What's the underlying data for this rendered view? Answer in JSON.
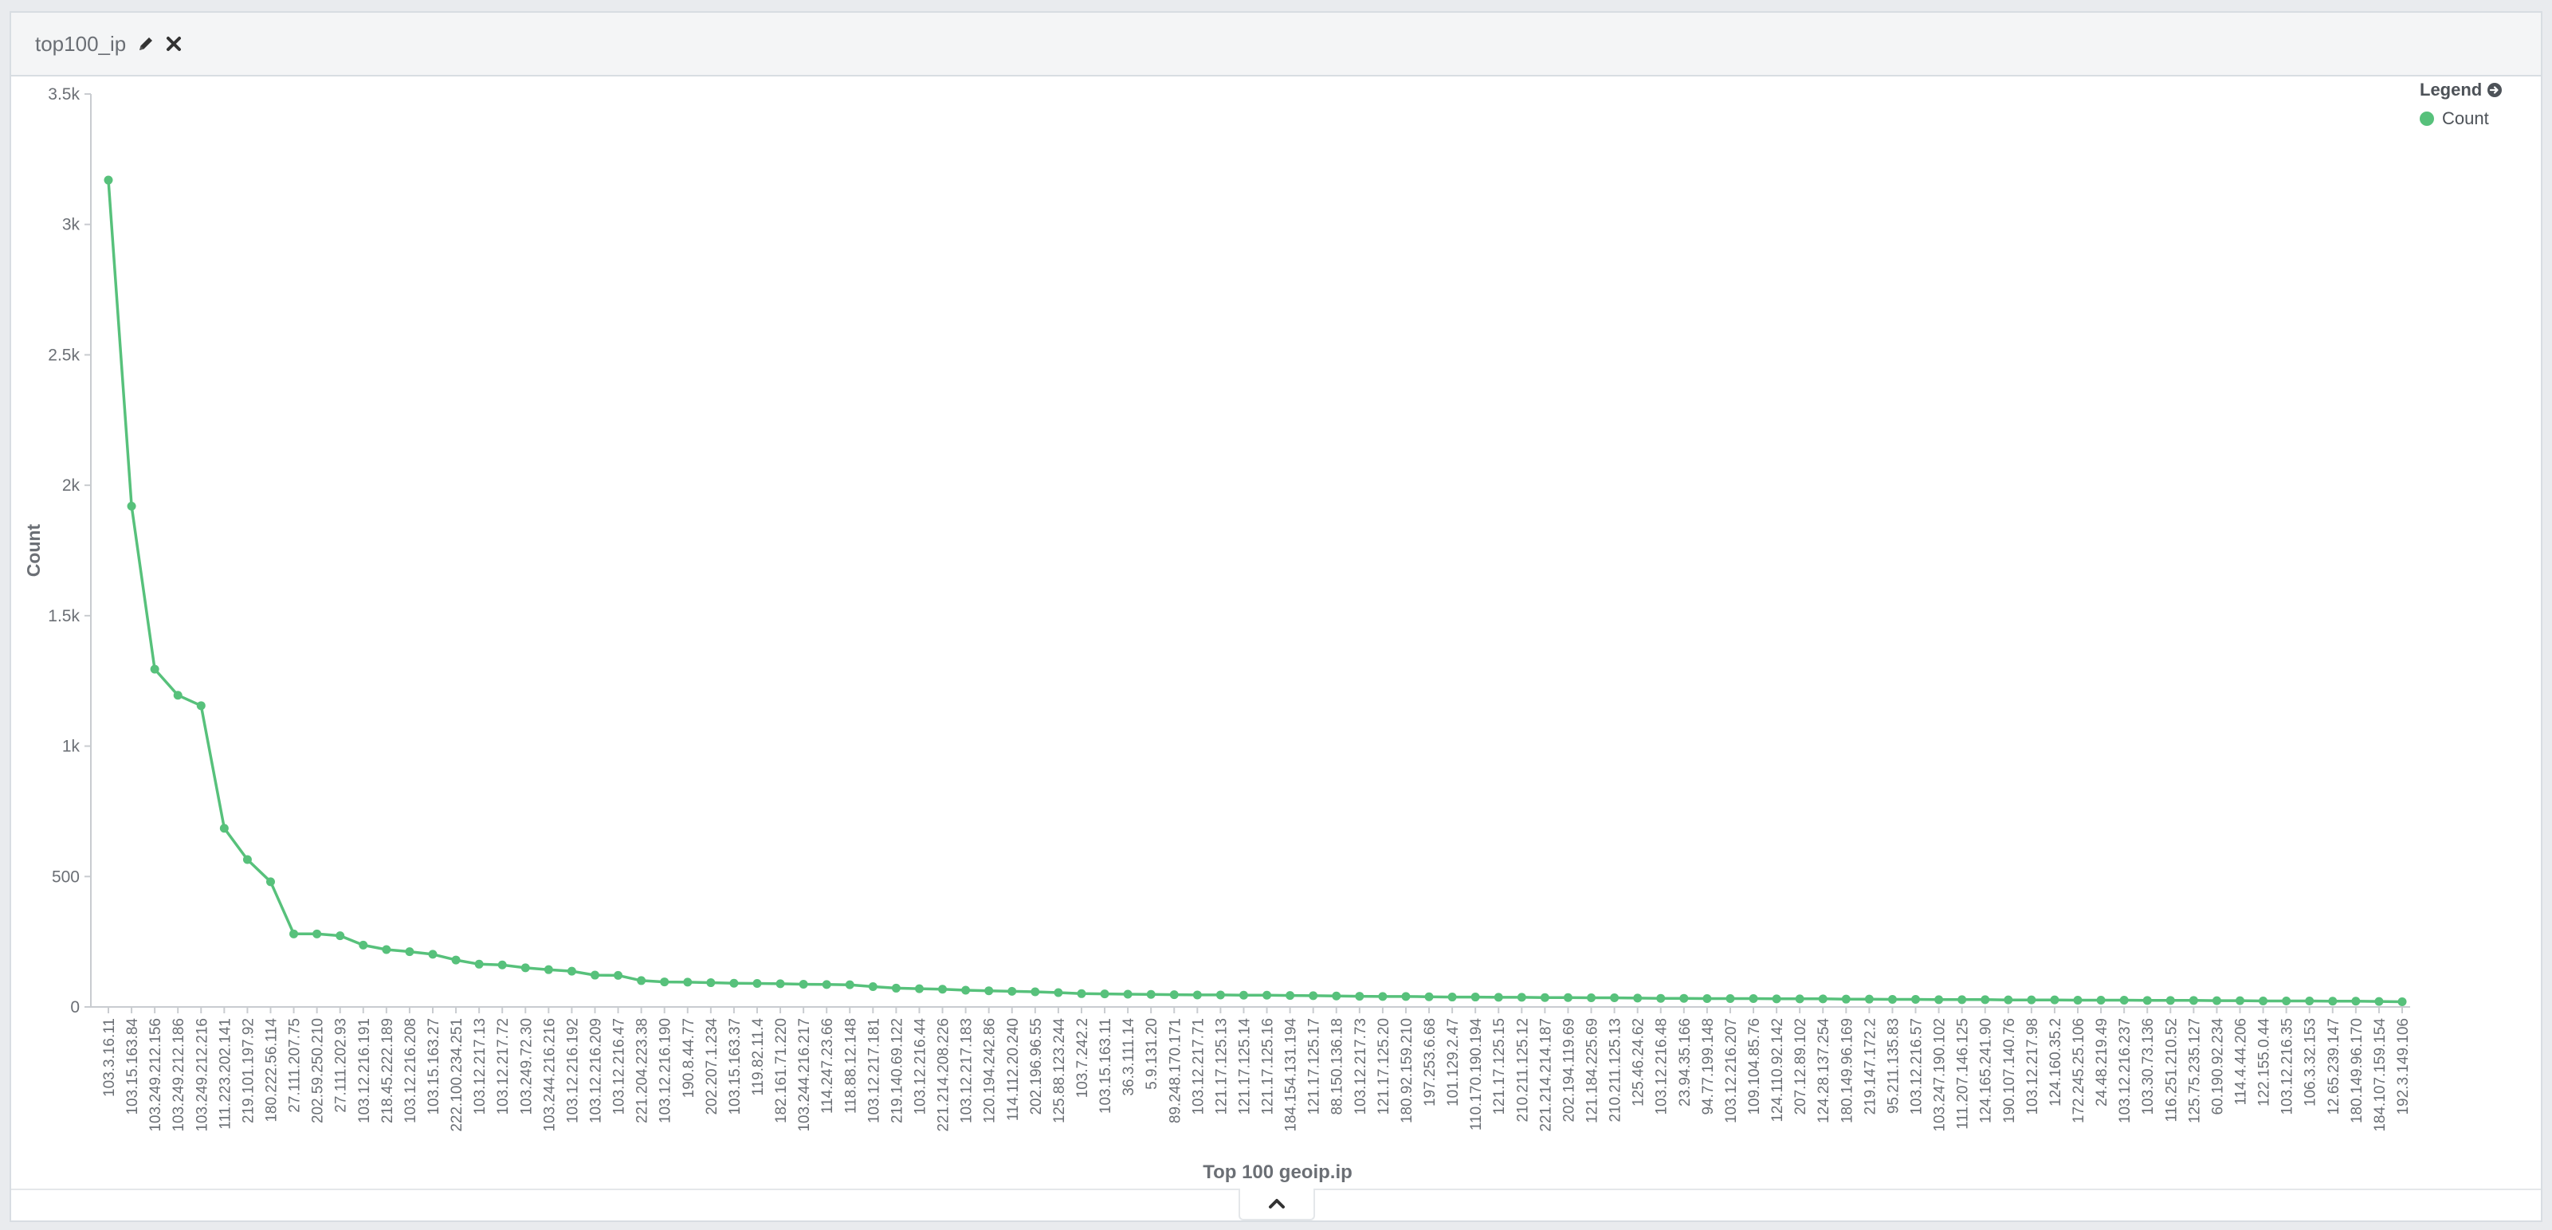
{
  "panel": {
    "title": "top100_ip",
    "edit_icon": "pencil-icon",
    "remove_icon": "close-icon"
  },
  "legend": {
    "title": "Legend",
    "toggle_icon": "arrow-circle-right-icon",
    "items": [
      {
        "label": "Count",
        "color": "#57c17b"
      }
    ]
  },
  "footer": {
    "toggle_icon": "chevron-up-icon"
  },
  "chart_data": {
    "type": "line",
    "title": "",
    "xlabel": "Top 100 geoip.ip",
    "ylabel": "Count",
    "ylim": [
      0,
      3500
    ],
    "yticks": [
      0,
      500,
      1000,
      1500,
      2000,
      2500,
      3000,
      3500
    ],
    "ytick_labels": [
      "0",
      "500",
      "1k",
      "1.5k",
      "2k",
      "2.5k",
      "3k",
      "3.5k"
    ],
    "grid": false,
    "legend_position": "top-right",
    "color": "#57c17b",
    "categories": [
      "103.3.16.11",
      "103.15.163.84",
      "103.249.212.156",
      "103.249.212.186",
      "103.249.212.216",
      "111.223.202.141",
      "219.101.197.92",
      "180.222.56.114",
      "27.111.207.75",
      "202.59.250.210",
      "27.111.202.93",
      "103.12.216.191",
      "218.45.222.189",
      "103.12.216.208",
      "103.15.163.27",
      "222.100.234.251",
      "103.12.217.13",
      "103.12.217.72",
      "103.249.72.30",
      "103.244.216.216",
      "103.12.216.192",
      "103.12.216.209",
      "103.12.216.47",
      "221.204.223.38",
      "103.12.216.190",
      "190.8.44.77",
      "202.207.1.234",
      "103.15.163.37",
      "119.82.11.4",
      "182.161.71.220",
      "103.244.216.217",
      "114.247.23.66",
      "118.88.12.148",
      "103.12.217.181",
      "219.140.69.122",
      "103.12.216.44",
      "221.214.208.226",
      "103.12.217.183",
      "120.194.242.86",
      "114.112.20.240",
      "202.196.96.55",
      "125.88.123.244",
      "103.7.242.2",
      "103.15.163.11",
      "36.3.111.14",
      "5.9.131.20",
      "89.248.170.171",
      "103.12.217.71",
      "121.17.125.13",
      "121.17.125.14",
      "121.17.125.16",
      "184.154.131.194",
      "121.17.125.17",
      "88.150.136.18",
      "103.12.217.73",
      "121.17.125.20",
      "180.92.159.210",
      "197.253.6.68",
      "101.129.2.47",
      "110.170.190.194",
      "121.17.125.15",
      "210.211.125.12",
      "221.214.214.187",
      "202.194.119.69",
      "121.184.225.69",
      "210.211.125.13",
      "125.46.24.62",
      "103.12.216.48",
      "23.94.35.166",
      "94.77.199.148",
      "103.12.216.207",
      "109.104.85.76",
      "124.110.92.142",
      "207.12.89.102",
      "124.28.137.254",
      "180.149.96.169",
      "219.147.172.2",
      "95.211.135.83",
      "103.12.216.57",
      "103.247.190.102",
      "111.207.146.125",
      "124.165.241.90",
      "190.107.140.76",
      "103.12.217.98",
      "124.160.35.2",
      "172.245.25.106",
      "24.48.219.49",
      "103.12.216.237",
      "103.30.73.136",
      "116.251.210.52",
      "125.75.235.127",
      "60.190.92.234",
      "114.4.44.206",
      "122.155.0.44",
      "103.12.216.35",
      "106.3.32.153",
      "12.65.239.147",
      "180.149.96.170",
      "184.107.159.154",
      "192.3.149.106"
    ],
    "values": [
      3170,
      1920,
      1295,
      1195,
      1155,
      685,
      565,
      480,
      280,
      280,
      273,
      237,
      220,
      212,
      202,
      180,
      164,
      161,
      150,
      143,
      137,
      122,
      121,
      101,
      96,
      95,
      93,
      91,
      90,
      89,
      87,
      86,
      85,
      78,
      72,
      70,
      68,
      64,
      62,
      60,
      58,
      55,
      51,
      50,
      49,
      48,
      47,
      46,
      46,
      45,
      45,
      44,
      43,
      42,
      41,
      40,
      40,
      39,
      38,
      38,
      37,
      37,
      36,
      36,
      35,
      35,
      34,
      33,
      33,
      32,
      32,
      32,
      31,
      31,
      31,
      30,
      30,
      29,
      29,
      28,
      28,
      28,
      27,
      27,
      27,
      26,
      26,
      26,
      25,
      25,
      25,
      24,
      24,
      23,
      23,
      23,
      22,
      22,
      21,
      20
    ]
  }
}
